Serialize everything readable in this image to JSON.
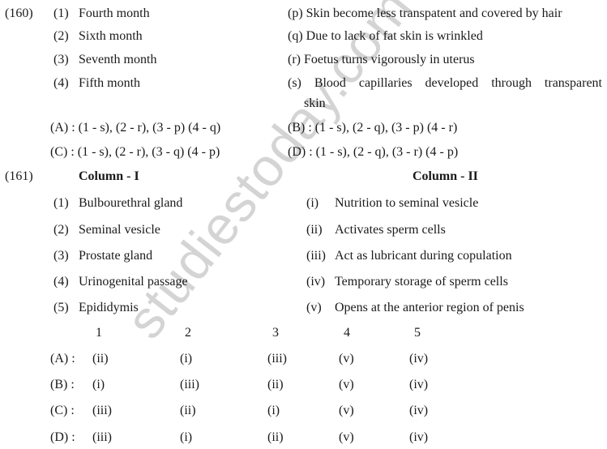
{
  "q160": {
    "number": "(160)",
    "items": [
      "(1)",
      "(2)",
      "(3)",
      "(4)"
    ],
    "item_texts": [
      "Fourth month",
      "Sixth month",
      "Seventh month",
      "Fifth month"
    ],
    "matches": [
      "(p) Skin become less transpatent and covered by hair",
      "(q) Due to lack of fat skin is wrinkled",
      "(r) Foetus turns vigorously in uterus",
      "(s) Blood capillaries developed through transparent",
      "skin"
    ],
    "options": [
      "(A) : (1 - s), (2 - r), (3 - p) (4 - q)",
      "(B) : (1 - s), (2 - q), (3 - p) (4 - r)",
      "(C) : (1 - s), (2 - r), (3 - q) (4 - p)",
      "(D) : (1 - s), (2 - q), (3 - r) (4 - p)"
    ]
  },
  "q161": {
    "number": "(161)",
    "col1_header": "Column - I",
    "col2_header": "Column - II",
    "col1_nums": [
      "(1)",
      "(2)",
      "(3)",
      "(4)",
      "(5)"
    ],
    "col1": [
      "Bulbourethral gland",
      "Seminal vesicle",
      "Prostate gland",
      "Urinogenital passage",
      "Epididymis"
    ],
    "col2_nums": [
      "(i)",
      "(ii)",
      "(iii)",
      "(iv)",
      "(v)"
    ],
    "col2": [
      "Nutrition to seminal vesicle",
      "Activates sperm cells",
      "Act as lubricant during copulation",
      "Temporary storage of sperm cells",
      "Opens at the anterior region of penis"
    ],
    "table_header": [
      "1",
      "2",
      "3",
      "4",
      "5"
    ],
    "rows": [
      {
        "label": "(A) :",
        "cells": [
          "(ii)",
          "(i)",
          "(iii)",
          "(v)",
          "(iv)"
        ]
      },
      {
        "label": "(B) :",
        "cells": [
          "(i)",
          "(iii)",
          "(ii)",
          "(v)",
          "(iv)"
        ]
      },
      {
        "label": "(C) :",
        "cells": [
          "(iii)",
          "(ii)",
          "(i)",
          "(v)",
          "(iv)"
        ]
      },
      {
        "label": "(D) :",
        "cells": [
          "(iii)",
          "(i)",
          "(ii)",
          "(v)",
          "(iv)"
        ]
      }
    ]
  },
  "watermark": "studiestoday.com"
}
